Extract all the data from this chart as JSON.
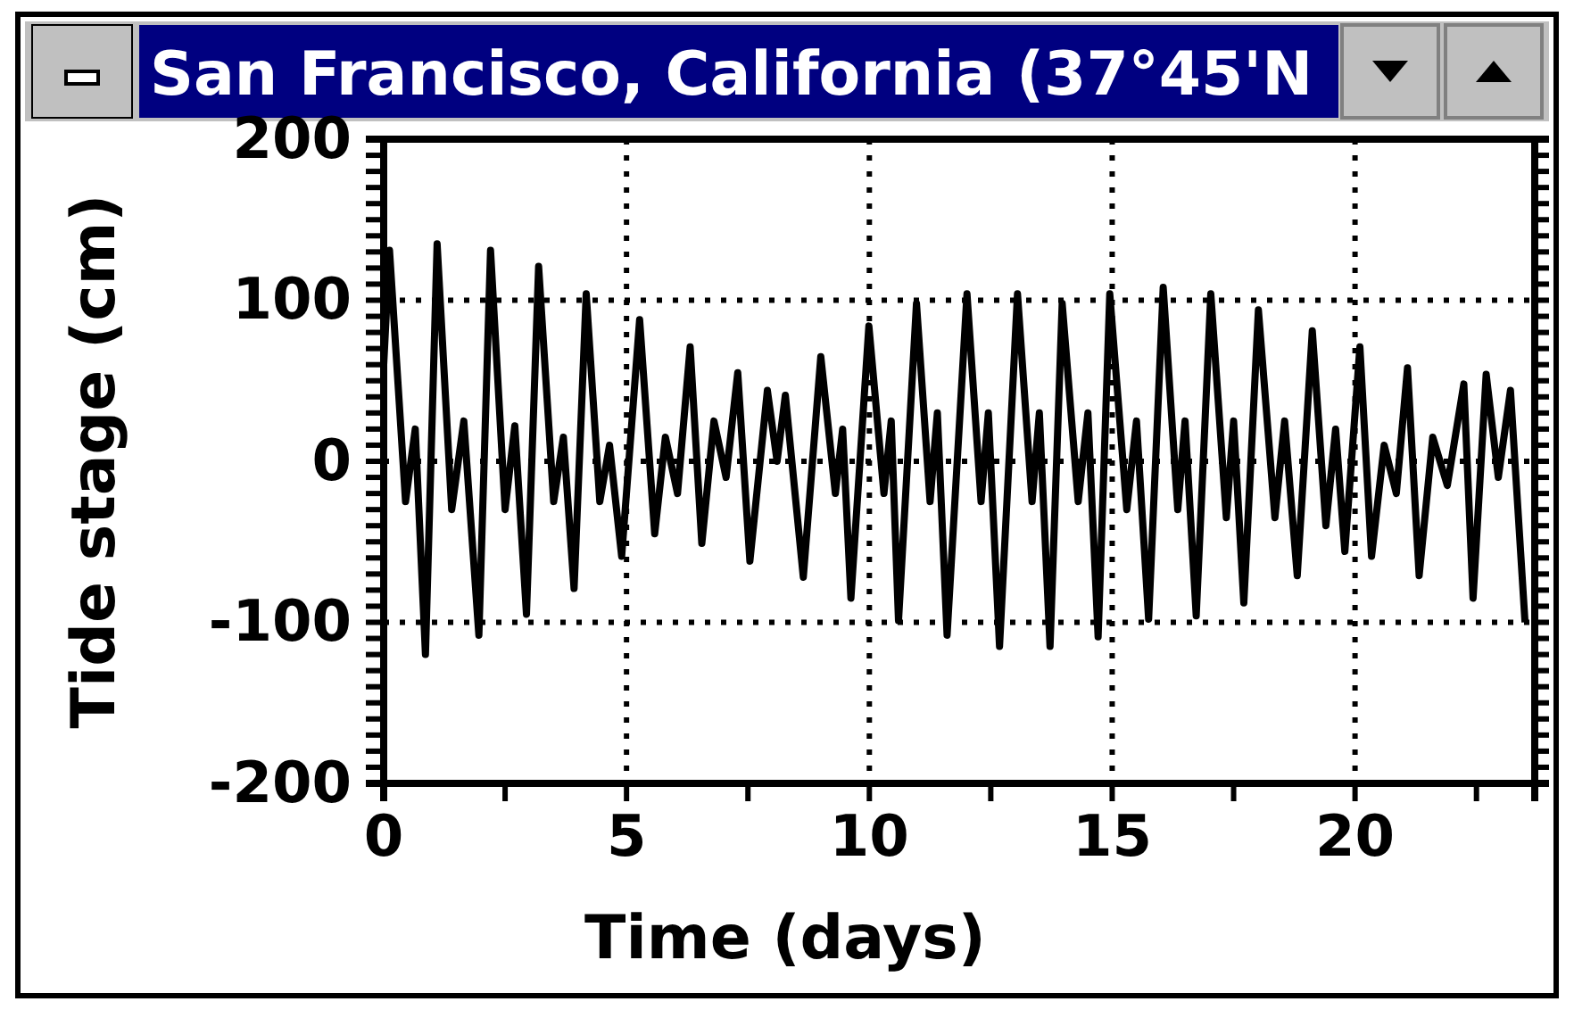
{
  "chart_data": {
    "type": "line",
    "title": "San Francisco, California (37°45'N",
    "xlabel": "Time (days)",
    "ylabel": "Tide stage (cm)",
    "xlim": [
      0,
      23.7
    ],
    "ylim": [
      -200,
      200
    ],
    "xticks": [
      0,
      {
        "value": 2.5,
        "label": null
      },
      5,
      {
        "value": 7.5,
        "label": null
      },
      10,
      {
        "value": 12.5,
        "label": null
      },
      15,
      {
        "value": 17.5,
        "label": null
      },
      20,
      {
        "value": 22.5,
        "label": null
      }
    ],
    "yticks": [
      -200,
      {
        "value": -190,
        "label": null
      },
      {
        "value": -180,
        "label": null
      },
      {
        "value": -170,
        "label": null
      },
      {
        "value": -160,
        "label": null
      },
      {
        "value": -150,
        "label": null
      },
      {
        "value": -140,
        "label": null
      },
      {
        "value": -130,
        "label": null
      },
      {
        "value": -120,
        "label": null
      },
      {
        "value": -110,
        "label": null
      },
      -100,
      {
        "value": -90,
        "label": null
      },
      {
        "value": -80,
        "label": null
      },
      {
        "value": -70,
        "label": null
      },
      {
        "value": -60,
        "label": null
      },
      {
        "value": -50,
        "label": null
      },
      {
        "value": -40,
        "label": null
      },
      {
        "value": -30,
        "label": null
      },
      {
        "value": -20,
        "label": null
      },
      {
        "value": -10,
        "label": null
      },
      0,
      {
        "value": 10,
        "label": null
      },
      {
        "value": 20,
        "label": null
      },
      {
        "value": 30,
        "label": null
      },
      {
        "value": 40,
        "label": null
      },
      {
        "value": 50,
        "label": null
      },
      {
        "value": 60,
        "label": null
      },
      {
        "value": 70,
        "label": null
      },
      {
        "value": 80,
        "label": null
      },
      {
        "value": 90,
        "label": null
      },
      100,
      {
        "value": 110,
        "label": null
      },
      {
        "value": 120,
        "label": null
      },
      {
        "value": 130,
        "label": null
      },
      {
        "value": 140,
        "label": null
      },
      {
        "value": 150,
        "label": null
      },
      {
        "value": 160,
        "label": null
      },
      {
        "value": 170,
        "label": null
      },
      {
        "value": 180,
        "label": null
      },
      {
        "value": 190,
        "label": null
      },
      200
    ],
    "grid": true,
    "marker": "none",
    "line_style": "solid",
    "series": [
      {
        "color": "#000000",
        "x": [
          0,
          0.12,
          0.45,
          0.65,
          0.86,
          1.1,
          1.4,
          1.65,
          1.96,
          2.2,
          2.5,
          2.7,
          2.94,
          3.19,
          3.5,
          3.7,
          3.92,
          4.17,
          4.45,
          4.65,
          4.9,
          5.27,
          5.58,
          5.8,
          6.05,
          6.31,
          6.55,
          6.8,
          7.05,
          7.29,
          7.54,
          7.9,
          8.1,
          8.27,
          8.64,
          9.0,
          9.3,
          9.45,
          9.62,
          9.99,
          10.3,
          10.45,
          10.6,
          10.97,
          11.25,
          11.4,
          11.6,
          12.01,
          12.3,
          12.45,
          12.68,
          13.05,
          13.35,
          13.5,
          13.72,
          13.97,
          14.3,
          14.5,
          14.71,
          14.95,
          15.3,
          15.5,
          15.75,
          16.05,
          16.35,
          16.5,
          16.73,
          17.03,
          17.35,
          17.5,
          17.71,
          18.01,
          18.35,
          18.55,
          18.81,
          19.12,
          19.4,
          19.6,
          19.79,
          20.1,
          20.34,
          20.6,
          20.85,
          21.08,
          21.32,
          21.6,
          21.9,
          22.24,
          22.43,
          22.7,
          22.95,
          23.2,
          23.5
        ],
        "values": [
          60,
          131,
          -25,
          20,
          -120,
          135,
          -30,
          25,
          -108,
          131,
          -30,
          22,
          -95,
          121,
          -25,
          15,
          -79,
          104,
          -25,
          10,
          -59,
          88,
          -45,
          15,
          -20,
          71,
          -51,
          25,
          -10,
          55,
          -62,
          44,
          0,
          41,
          -72,
          65,
          -20,
          20,
          -85,
          84,
          -20,
          25,
          -99,
          98,
          -25,
          30,
          -108,
          104,
          -25,
          30,
          -115,
          104,
          -25,
          30,
          -115,
          98,
          -25,
          30,
          -109,
          104,
          -30,
          25,
          -98,
          108,
          -30,
          25,
          -96,
          104,
          -35,
          25,
          -88,
          94,
          -35,
          25,
          -71,
          81,
          -40,
          20,
          -56,
          71,
          -59,
          10,
          -20,
          58,
          -71,
          15,
          -15,
          48,
          -85,
          54,
          -10,
          44,
          -100
        ]
      }
    ]
  }
}
